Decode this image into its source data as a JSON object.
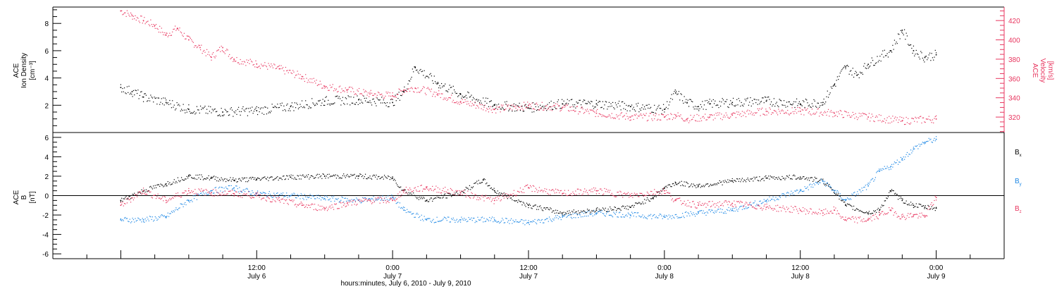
{
  "chart_data": [
    {
      "type": "scatter",
      "panel": "top",
      "ylabel_left": [
        "ACE",
        "Ion Density",
        "[cm⁻³]"
      ],
      "ylabel_right": [
        "ACE",
        "Velocity",
        "[km/s]"
      ],
      "ylim_left": [
        0,
        9.2
      ],
      "yticks_left": [
        2,
        4,
        6,
        8
      ],
      "ylim_right": [
        304,
        434
      ],
      "yticks_right": [
        320,
        340,
        360,
        380,
        400,
        420
      ],
      "colors": {
        "density": "#000000",
        "velocity": "#e8365f"
      },
      "series": [
        {
          "name": "density",
          "axis": "left",
          "color": "#000000",
          "x": [
            0,
            1,
            2,
            4,
            6,
            9,
            12,
            15,
            18,
            21,
            24,
            25,
            26,
            28,
            30,
            33,
            36,
            39,
            42,
            45,
            48,
            49,
            50,
            51,
            52,
            54,
            57,
            60,
            62,
            63,
            64,
            65,
            66,
            68,
            69,
            70,
            71,
            72
          ],
          "y": [
            3.3,
            3.0,
            2.6,
            2.2,
            1.7,
            1.5,
            1.6,
            1.9,
            2.3,
            2.4,
            2.2,
            3.0,
            4.8,
            3.6,
            2.8,
            2.0,
            1.8,
            2.1,
            2.1,
            1.9,
            1.7,
            2.9,
            2.2,
            1.9,
            2.1,
            2.2,
            2.3,
            2.1,
            2.2,
            3.5,
            4.8,
            4.2,
            5.0,
            6.0,
            7.5,
            6.0,
            5.5,
            5.7
          ]
        },
        {
          "name": "velocity",
          "axis": "right",
          "color": "#e8365f",
          "x": [
            0,
            1,
            2,
            3,
            4,
            5,
            6,
            7,
            8,
            9,
            10,
            12,
            14,
            16,
            18,
            20,
            22,
            24,
            25,
            26,
            28,
            30,
            33,
            36,
            39,
            42,
            45,
            48,
            49,
            50,
            52,
            54,
            57,
            60,
            63,
            66,
            69,
            72
          ],
          "y": [
            430,
            425,
            420,
            415,
            405,
            412,
            400,
            392,
            382,
            392,
            380,
            375,
            370,
            362,
            352,
            348,
            344,
            342,
            348,
            350,
            344,
            336,
            328,
            332,
            330,
            324,
            320,
            320,
            322,
            318,
            320,
            322,
            326,
            326,
            324,
            320,
            316,
            318
          ]
        }
      ]
    },
    {
      "type": "scatter",
      "panel": "bottom",
      "ylabel": [
        "ACE",
        "B",
        "[nT]"
      ],
      "ylim": [
        -6.5,
        6.5
      ],
      "yticks": [
        -6,
        -4,
        -2,
        0,
        2,
        4,
        6
      ],
      "zero_line": true,
      "legend": [
        {
          "base": "B",
          "sub": "x",
          "color": "#000000"
        },
        {
          "base": "B",
          "sub": "y",
          "color": "#1e88e5"
        },
        {
          "base": "B",
          "sub": "z",
          "color": "#e8365f"
        }
      ],
      "series": [
        {
          "name": "Bx",
          "color": "#000000",
          "x": [
            0,
            2,
            4,
            6,
            8,
            10,
            12,
            15,
            18,
            21,
            24,
            25,
            27,
            30,
            32,
            33,
            36,
            39,
            42,
            45,
            47,
            48,
            49,
            51,
            54,
            57,
            60,
            62,
            63,
            64,
            66,
            67,
            68,
            69,
            70,
            71,
            72
          ],
          "y": [
            -0.5,
            0.5,
            1.2,
            2.0,
            1.8,
            1.6,
            1.7,
            1.9,
            2.0,
            2.0,
            1.8,
            0.5,
            -0.5,
            0.3,
            1.6,
            0.5,
            -1.0,
            -1.8,
            -1.5,
            -1.2,
            -0.2,
            0.8,
            1.3,
            1.0,
            1.5,
            1.8,
            1.9,
            1.5,
            0.5,
            -1.0,
            -1.8,
            -1.5,
            0.5,
            -0.5,
            -1.0,
            -1.2,
            -1.3
          ]
        },
        {
          "name": "By",
          "color": "#1e88e5",
          "x": [
            0,
            2,
            4,
            6,
            8,
            10,
            12,
            15,
            18,
            21,
            24,
            25,
            27,
            30,
            33,
            36,
            39,
            42,
            45,
            48,
            51,
            54,
            57,
            60,
            62,
            63,
            64,
            66,
            67,
            68,
            69,
            70,
            71,
            72
          ],
          "y": [
            -2.5,
            -2.5,
            -2.2,
            -0.5,
            0.5,
            0.8,
            0.2,
            0.0,
            -0.3,
            -0.5,
            -0.2,
            -1.5,
            -2.5,
            -2.5,
            -2.5,
            -2.8,
            -2.2,
            -1.8,
            -2.0,
            -2.2,
            -1.8,
            -1.5,
            -0.5,
            0.5,
            1.5,
            0.5,
            -0.5,
            1.0,
            2.5,
            3.0,
            3.8,
            4.8,
            5.5,
            5.8
          ]
        },
        {
          "name": "Bz",
          "color": "#e8365f",
          "x": [
            0,
            2,
            4,
            6,
            8,
            10,
            12,
            14,
            16,
            18,
            20,
            22,
            24,
            25,
            27,
            30,
            33,
            36,
            39,
            42,
            45,
            48,
            49,
            51,
            54,
            57,
            60,
            62,
            63,
            64,
            66,
            67,
            68,
            69,
            70,
            71,
            72
          ],
          "y": [
            -1.0,
            0.5,
            -0.5,
            0.5,
            0.3,
            0.2,
            0.0,
            -0.5,
            -1.0,
            -1.3,
            -0.8,
            -0.5,
            -0.5,
            0.5,
            0.8,
            0.3,
            -0.5,
            0.8,
            0.2,
            0.5,
            0.0,
            0.5,
            -0.5,
            -1.0,
            -0.8,
            -1.2,
            -1.5,
            -1.8,
            -1.5,
            -2.5,
            -2.5,
            -2.0,
            -1.5,
            -2.2,
            -2.0,
            -2.2,
            -0.2
          ]
        }
      ]
    }
  ],
  "x_axis": {
    "xlim_hours": [
      -6,
      78
    ],
    "major_ticks": [
      {
        "x": 12,
        "top": "12:00",
        "bottom": "July 6"
      },
      {
        "x": 24,
        "top": "0:00",
        "bottom": "July 7"
      },
      {
        "x": 36,
        "top": "12:00",
        "bottom": "July 7"
      },
      {
        "x": 48,
        "top": "0:00",
        "bottom": "July 8"
      },
      {
        "x": 60,
        "top": "12:00",
        "bottom": "July 8"
      },
      {
        "x": 72,
        "top": "0:00",
        "bottom": "July 9"
      }
    ],
    "title": "hours:minutes, July  6, 2010 - July  9, 2010"
  }
}
